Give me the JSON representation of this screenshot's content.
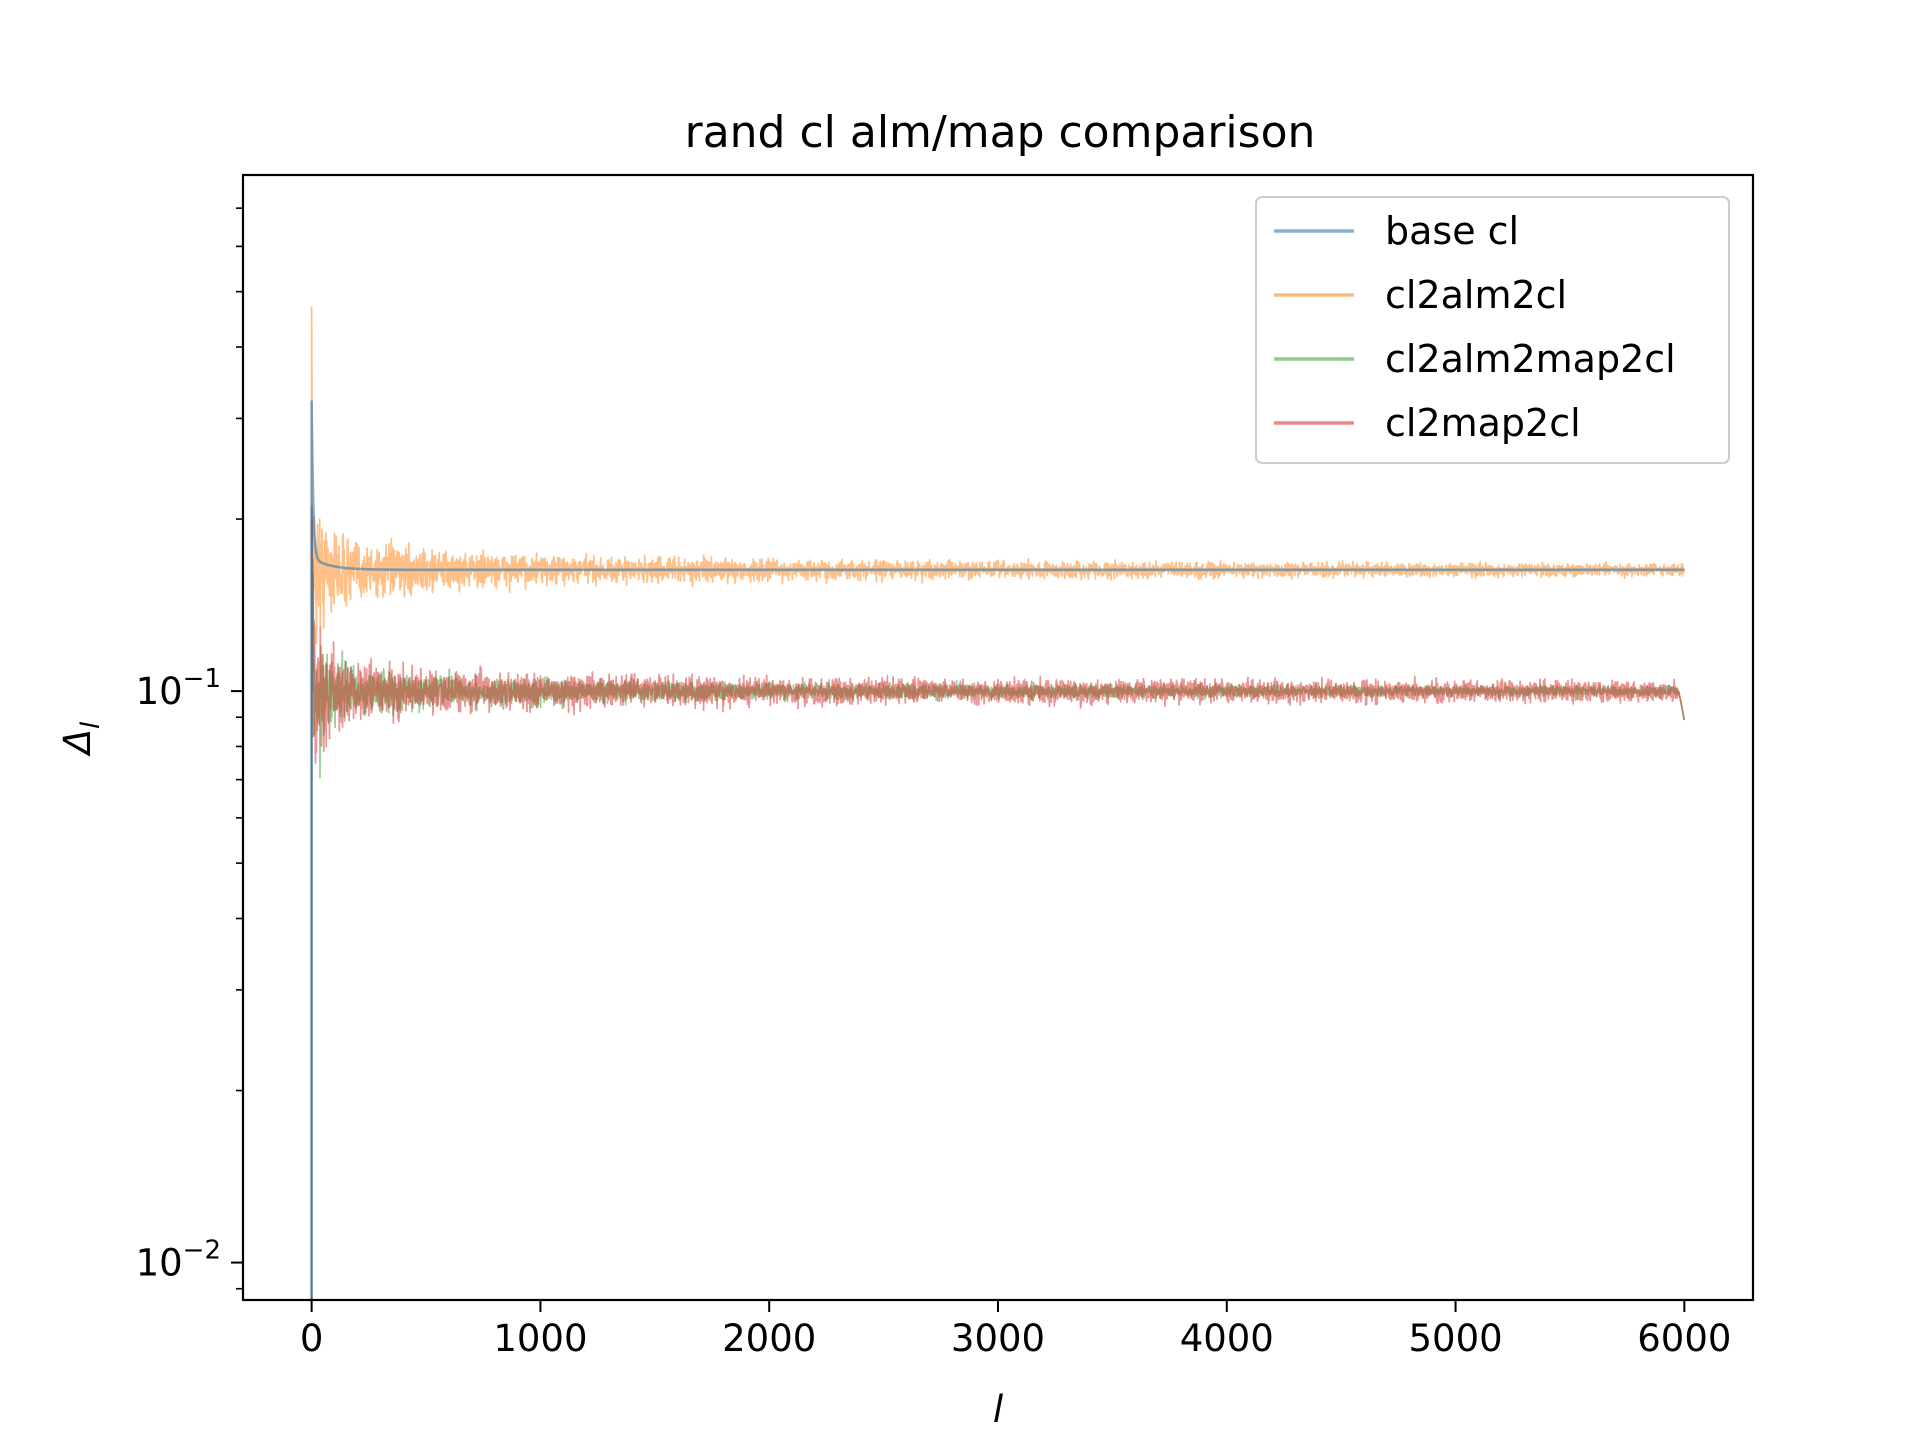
{
  "chart_data": {
    "type": "line",
    "title": "rand cl alm/map comparison",
    "xlabel": "l",
    "ylabel": "Δ",
    "ylabel_subscript": "l",
    "x_range": [
      -300,
      6300
    ],
    "ylim": [
      0.0086,
      0.8
    ],
    "y_scale": "log",
    "x_ticks": [
      0,
      1000,
      2000,
      3000,
      4000,
      5000,
      6000
    ],
    "x_tick_labels": [
      "0",
      "1000",
      "2000",
      "3000",
      "4000",
      "5000",
      "6000"
    ],
    "y_ticks": [
      0.01,
      0.1
    ],
    "y_tick_labels": [
      {
        "base": "10",
        "exp": "−2"
      },
      {
        "base": "10",
        "exp": "−1"
      }
    ],
    "grid": false,
    "legend_position": "top-right",
    "series": [
      {
        "name": "base cl",
        "color": "#1f77b4",
        "pattern": "smooth",
        "values_at": [
          [
            0,
            0.31
          ],
          [
            30,
            0.19
          ],
          [
            100,
            0.168
          ],
          [
            300,
            0.165
          ],
          [
            1000,
            0.163
          ],
          [
            3000,
            0.162
          ],
          [
            6000,
            0.163
          ]
        ]
      },
      {
        "name": "cl2alm2cl",
        "color": "#ff7f0e",
        "pattern": "noisy-high",
        "values_at": [
          [
            0,
            0.47
          ],
          [
            100,
            0.165
          ],
          [
            1000,
            0.163
          ],
          [
            6000,
            0.163
          ]
        ]
      },
      {
        "name": "cl2alm2map2cl",
        "color": "#2ca02c",
        "pattern": "noisy-low",
        "values_at": [
          [
            0,
            0.2
          ],
          [
            100,
            0.102
          ],
          [
            1000,
            0.101
          ],
          [
            6000,
            0.1
          ]
        ]
      },
      {
        "name": "cl2map2cl",
        "color": "#d62728",
        "pattern": "noisy-low",
        "values_at": [
          [
            0,
            0.21
          ],
          [
            100,
            0.102
          ],
          [
            1000,
            0.101
          ],
          [
            6000,
            0.1
          ]
        ]
      }
    ]
  }
}
